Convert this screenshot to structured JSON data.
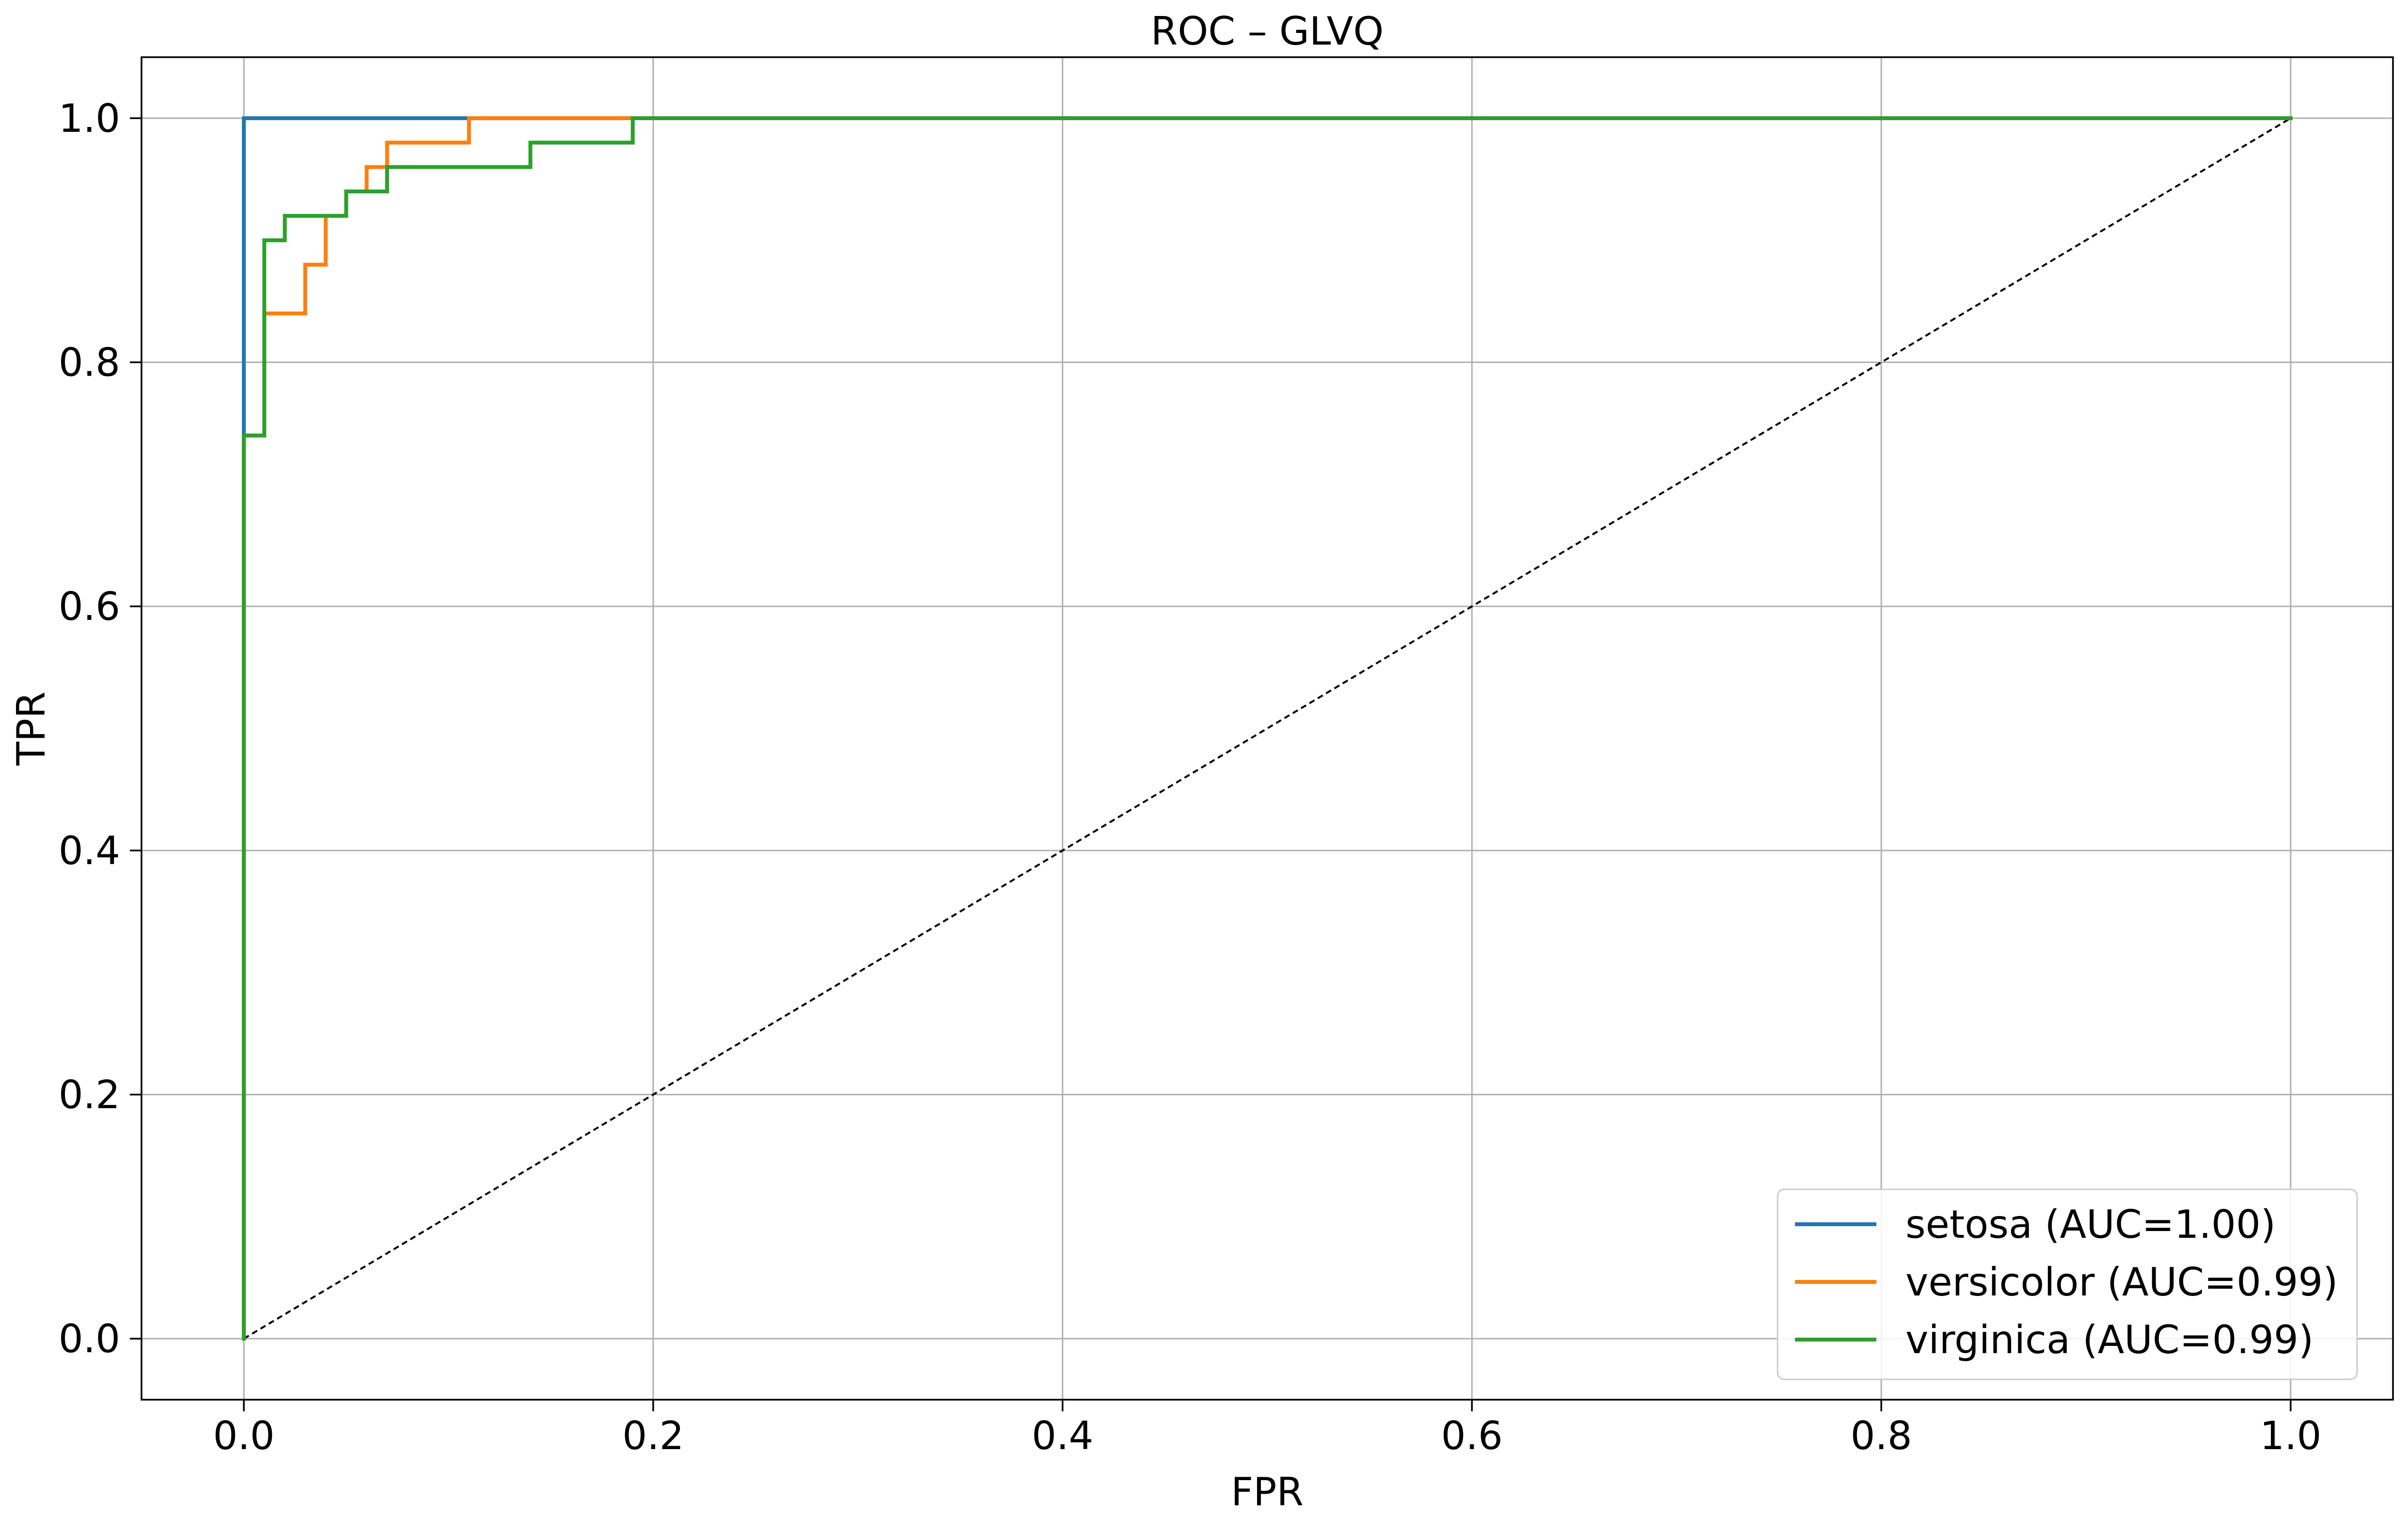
{
  "chart_data": {
    "type": "line",
    "title": "ROC – GLVQ",
    "xlabel": "FPR",
    "ylabel": "TPR",
    "xlim": [
      -0.05,
      1.05
    ],
    "ylim": [
      -0.05,
      1.05
    ],
    "xticks": [
      0.0,
      0.2,
      0.4,
      0.6,
      0.8,
      1.0
    ],
    "yticks": [
      0.0,
      0.2,
      0.4,
      0.6,
      0.8,
      1.0
    ],
    "xtick_labels": [
      "0.0",
      "0.2",
      "0.4",
      "0.6",
      "0.8",
      "1.0"
    ],
    "ytick_labels": [
      "0.0",
      "0.2",
      "0.4",
      "0.6",
      "0.8",
      "1.0"
    ],
    "grid": true,
    "legend_position": "bottom-right",
    "series": [
      {
        "name": "setosa (AUC=1.00)",
        "color": "#1f77b4",
        "x": [
          0.0,
          0.0,
          0.0,
          0.11,
          1.0
        ],
        "y": [
          0.0,
          0.74,
          1.0,
          1.0,
          1.0
        ]
      },
      {
        "name": "versicolor (AUC=0.99)",
        "color": "#ff7f0e",
        "x": [
          0.0,
          0.0,
          0.01,
          0.01,
          0.03,
          0.03,
          0.04,
          0.04,
          0.05,
          0.05,
          0.06,
          0.06,
          0.07,
          0.07,
          0.11,
          0.11,
          0.19,
          1.0
        ],
        "y": [
          0.0,
          0.74,
          0.74,
          0.84,
          0.84,
          0.88,
          0.88,
          0.92,
          0.92,
          0.94,
          0.94,
          0.96,
          0.96,
          0.98,
          0.98,
          1.0,
          1.0,
          1.0
        ]
      },
      {
        "name": "virginica (AUC=0.99)",
        "color": "#2ca02c",
        "x": [
          0.0,
          0.0,
          0.01,
          0.01,
          0.02,
          0.02,
          0.05,
          0.05,
          0.07,
          0.07,
          0.14,
          0.14,
          0.19,
          0.19,
          1.0
        ],
        "y": [
          0.0,
          0.74,
          0.74,
          0.9,
          0.9,
          0.92,
          0.92,
          0.94,
          0.94,
          0.96,
          0.96,
          0.98,
          0.98,
          1.0,
          1.0
        ]
      }
    ],
    "reference_line": {
      "x": [
        0.0,
        1.0
      ],
      "y": [
        0.0,
        1.0
      ],
      "color": "#000000",
      "style": "dashed"
    }
  }
}
